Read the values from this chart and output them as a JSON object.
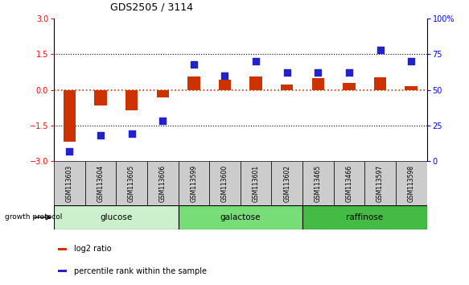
{
  "title": "GDS2505 / 3114",
  "samples": [
    "GSM113603",
    "GSM113604",
    "GSM113605",
    "GSM113606",
    "GSM113599",
    "GSM113600",
    "GSM113601",
    "GSM113602",
    "GSM113465",
    "GSM113466",
    "GSM113597",
    "GSM113598"
  ],
  "log2_ratio": [
    -2.2,
    -0.65,
    -0.85,
    -0.32,
    0.55,
    0.42,
    0.55,
    0.22,
    0.48,
    0.28,
    0.52,
    0.16
  ],
  "percentile_rank": [
    7,
    18,
    19,
    28,
    68,
    60,
    70,
    62,
    62,
    62,
    78,
    70
  ],
  "groups": [
    {
      "name": "glucose",
      "start": 0,
      "end": 4,
      "color": "#ccf0cc"
    },
    {
      "name": "galactose",
      "start": 4,
      "end": 8,
      "color": "#77dd77"
    },
    {
      "name": "raffinose",
      "start": 8,
      "end": 12,
      "color": "#44bb44"
    }
  ],
  "ylim_left": [
    -3,
    3
  ],
  "ylim_right": [
    0,
    100
  ],
  "yticks_left": [
    -3,
    -1.5,
    0,
    1.5,
    3
  ],
  "yticks_right": [
    0,
    25,
    50,
    75,
    100
  ],
  "bar_color": "#cc3300",
  "dot_color": "#2222cc",
  "bar_width": 0.4,
  "dot_size": 35,
  "sample_box_color": "#cccccc",
  "growth_protocol_label": "growth protocol",
  "legend_bar_label": "log2 ratio",
  "legend_dot_label": "percentile rank within the sample"
}
